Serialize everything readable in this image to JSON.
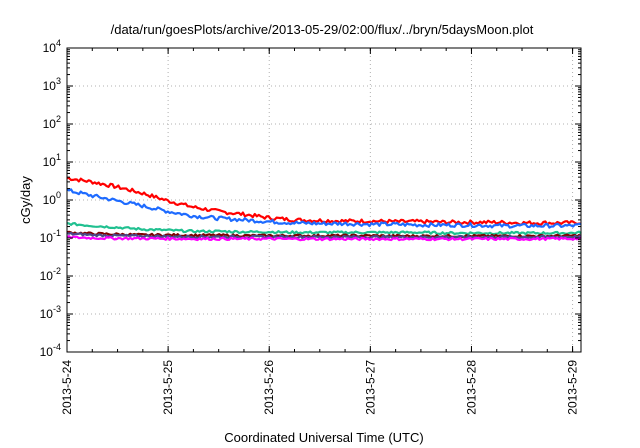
{
  "chart_data": {
    "type": "line",
    "title": "/data/run/goesPlots/archive/2013-05-29/02:00/flux/../bryn/5daysMoon.plot",
    "xlabel": "Coordinated Universal Time (UTC)",
    "ylabel": "cGy/day",
    "y_scale": "log",
    "ylim": [
      0.0001,
      10000
    ],
    "y_ticks": [
      {
        "value": 0.0001,
        "base": "10",
        "exp": "-4"
      },
      {
        "value": 0.001,
        "base": "10",
        "exp": "-3"
      },
      {
        "value": 0.01,
        "base": "10",
        "exp": "-2"
      },
      {
        "value": 0.1,
        "base": "10",
        "exp": "-1"
      },
      {
        "value": 1,
        "base": "10",
        "exp": "0"
      },
      {
        "value": 10,
        "base": "10",
        "exp": "1"
      },
      {
        "value": 100,
        "base": "10",
        "exp": "2"
      },
      {
        "value": 1000,
        "base": "10",
        "exp": "3"
      },
      {
        "value": 10000,
        "base": "10",
        "exp": "4"
      }
    ],
    "xlim": [
      "2013-05-24",
      "2013-05-29 02:00"
    ],
    "x_ticks": [
      {
        "value": "2013-05-24",
        "label": "2013-5-24"
      },
      {
        "value": "2013-05-25",
        "label": "2013-5-25"
      },
      {
        "value": "2013-05-26",
        "label": "2013-5-26"
      },
      {
        "value": "2013-05-27",
        "label": "2013-5-27"
      },
      {
        "value": "2013-05-28",
        "label": "2013-5-28"
      },
      {
        "value": "2013-05-29",
        "label": "2013-5-29"
      }
    ],
    "grid": true,
    "x": [
      "2013-05-24 00:00",
      "2013-05-24 06:00",
      "2013-05-24 12:00",
      "2013-05-24 18:00",
      "2013-05-25 00:00",
      "2013-05-25 06:00",
      "2013-05-25 12:00",
      "2013-05-25 18:00",
      "2013-05-26 00:00",
      "2013-05-26 06:00",
      "2013-05-26 12:00",
      "2013-05-26 18:00",
      "2013-05-27 00:00",
      "2013-05-27 06:00",
      "2013-05-27 12:00",
      "2013-05-27 18:00",
      "2013-05-28 00:00",
      "2013-05-28 06:00",
      "2013-05-28 12:00",
      "2013-05-28 18:00",
      "2013-05-29 00:00",
      "2013-05-29 02:00"
    ],
    "series": [
      {
        "color": "#ff0000",
        "values": [
          3.8,
          3.0,
          2.2,
          1.5,
          0.95,
          0.65,
          0.5,
          0.42,
          0.34,
          0.3,
          0.29,
          0.28,
          0.28,
          0.27,
          0.27,
          0.26,
          0.26,
          0.26,
          0.25,
          0.25,
          0.25,
          0.26
        ]
      },
      {
        "color": "#1e6bff",
        "values": [
          1.8,
          1.3,
          0.95,
          0.7,
          0.5,
          0.38,
          0.33,
          0.3,
          0.27,
          0.25,
          0.24,
          0.24,
          0.23,
          0.23,
          0.22,
          0.22,
          0.22,
          0.21,
          0.21,
          0.21,
          0.21,
          0.22
        ]
      },
      {
        "color": "#20c090",
        "values": [
          0.24,
          0.21,
          0.19,
          0.17,
          0.16,
          0.15,
          0.15,
          0.145,
          0.145,
          0.14,
          0.14,
          0.14,
          0.14,
          0.14,
          0.14,
          0.135,
          0.135,
          0.135,
          0.135,
          0.135,
          0.135,
          0.14
        ]
      },
      {
        "color": "#800000",
        "values": [
          0.14,
          0.13,
          0.125,
          0.12,
          0.12,
          0.118,
          0.118,
          0.115,
          0.115,
          0.115,
          0.115,
          0.115,
          0.115,
          0.113,
          0.113,
          0.113,
          0.113,
          0.113,
          0.113,
          0.113,
          0.115,
          0.116
        ]
      },
      {
        "color": "#4a4a8a",
        "values": [
          0.13,
          0.12,
          0.115,
          0.112,
          0.11,
          0.108,
          0.108,
          0.107,
          0.107,
          0.107,
          0.107,
          0.107,
          0.106,
          0.106,
          0.106,
          0.106,
          0.106,
          0.106,
          0.106,
          0.106,
          0.108,
          0.109
        ]
      },
      {
        "color": "#ff00ff",
        "values": [
          0.105,
          0.1,
          0.098,
          0.097,
          0.096,
          0.095,
          0.095,
          0.095,
          0.095,
          0.094,
          0.094,
          0.094,
          0.094,
          0.094,
          0.094,
          0.094,
          0.094,
          0.094,
          0.094,
          0.095,
          0.096,
          0.097
        ]
      }
    ]
  }
}
